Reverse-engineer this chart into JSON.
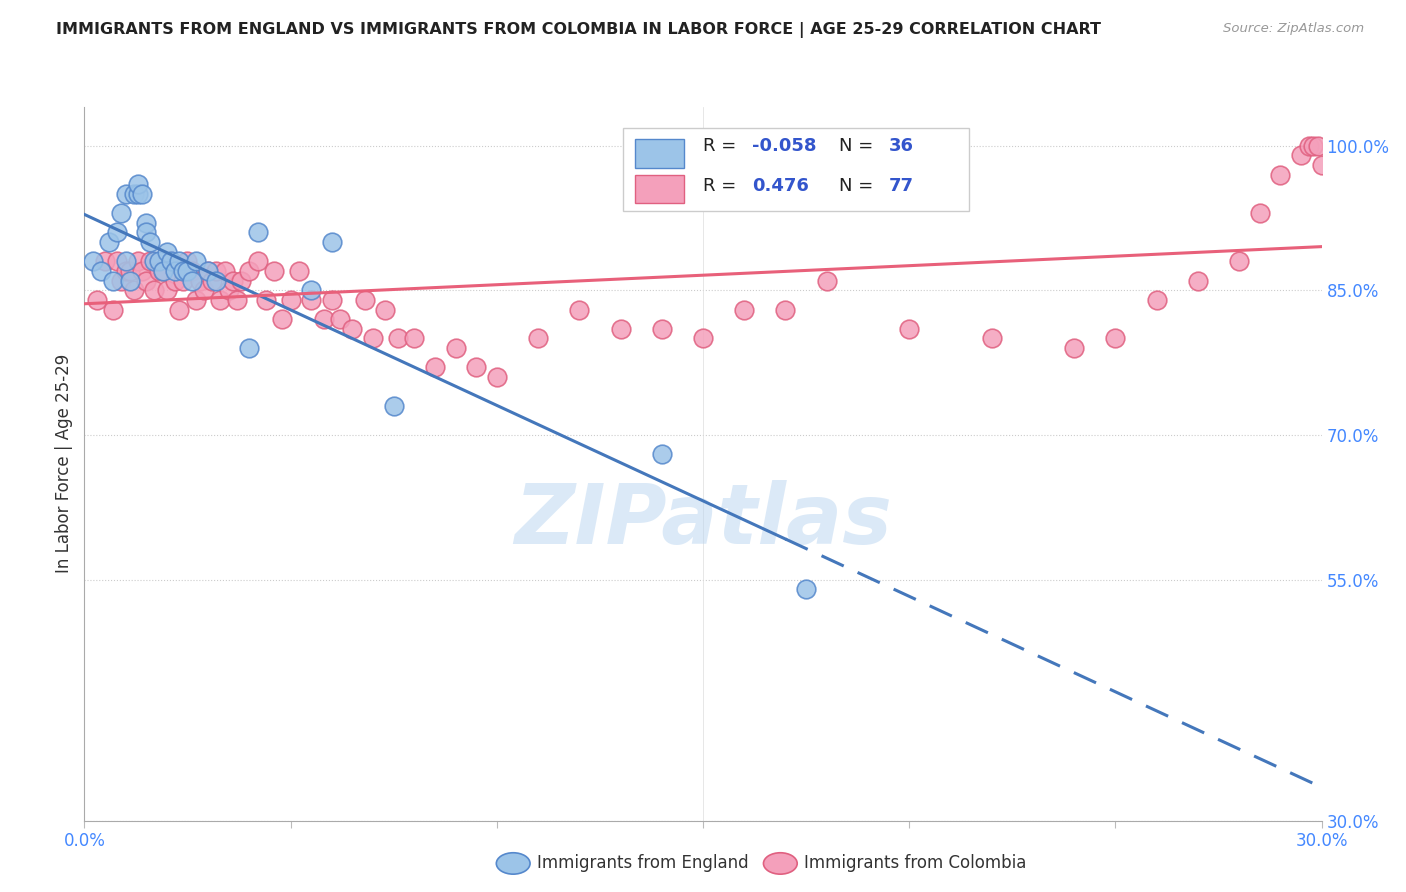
{
  "title": "IMMIGRANTS FROM ENGLAND VS IMMIGRANTS FROM COLOMBIA IN LABOR FORCE | AGE 25-29 CORRELATION CHART",
  "source": "Source: ZipAtlas.com",
  "ylabel": "In Labor Force | Age 25-29",
  "xlim": [
    0.0,
    0.3
  ],
  "ylim": [
    0.3,
    1.04
  ],
  "xticks": [
    0.0,
    0.05,
    0.1,
    0.15,
    0.2,
    0.25,
    0.3
  ],
  "xticklabels": [
    "0.0%",
    "",
    "",
    "",
    "",
    "",
    "30.0%"
  ],
  "yticks_right": [
    1.0,
    0.85,
    0.7,
    0.55,
    0.3
  ],
  "yticks_right_labels": [
    "100.0%",
    "85.0%",
    "70.0%",
    "55.0%",
    "30.0%"
  ],
  "england_color": "#9CC4E8",
  "colombia_color": "#F4A0BB",
  "england_edge_color": "#5588CC",
  "colombia_edge_color": "#E06080",
  "england_line_color": "#4477BB",
  "colombia_line_color": "#E8607A",
  "england_R": -0.058,
  "england_N": 36,
  "colombia_R": 0.476,
  "colombia_N": 77,
  "legend_label_england": "Immigrants from England",
  "legend_label_colombia": "Immigrants from Colombia",
  "england_x": [
    0.002,
    0.004,
    0.006,
    0.007,
    0.008,
    0.009,
    0.01,
    0.01,
    0.011,
    0.012,
    0.013,
    0.013,
    0.014,
    0.015,
    0.015,
    0.016,
    0.017,
    0.018,
    0.019,
    0.02,
    0.021,
    0.022,
    0.023,
    0.024,
    0.025,
    0.026,
    0.027,
    0.03,
    0.032,
    0.04,
    0.042,
    0.055,
    0.06,
    0.075,
    0.14,
    0.175
  ],
  "england_y": [
    0.88,
    0.87,
    0.9,
    0.86,
    0.91,
    0.93,
    0.88,
    0.95,
    0.86,
    0.95,
    0.95,
    0.96,
    0.95,
    0.92,
    0.91,
    0.9,
    0.88,
    0.88,
    0.87,
    0.89,
    0.88,
    0.87,
    0.88,
    0.87,
    0.87,
    0.86,
    0.88,
    0.87,
    0.86,
    0.79,
    0.91,
    0.85,
    0.9,
    0.73,
    0.68,
    0.54
  ],
  "colombia_x": [
    0.003,
    0.005,
    0.007,
    0.008,
    0.009,
    0.01,
    0.011,
    0.012,
    0.013,
    0.014,
    0.015,
    0.016,
    0.017,
    0.018,
    0.019,
    0.02,
    0.021,
    0.022,
    0.023,
    0.024,
    0.025,
    0.026,
    0.027,
    0.028,
    0.029,
    0.03,
    0.031,
    0.032,
    0.033,
    0.034,
    0.035,
    0.036,
    0.037,
    0.038,
    0.04,
    0.042,
    0.044,
    0.046,
    0.048,
    0.05,
    0.052,
    0.055,
    0.058,
    0.06,
    0.062,
    0.065,
    0.068,
    0.07,
    0.073,
    0.076,
    0.08,
    0.085,
    0.09,
    0.095,
    0.1,
    0.11,
    0.12,
    0.13,
    0.14,
    0.15,
    0.16,
    0.17,
    0.18,
    0.2,
    0.22,
    0.24,
    0.25,
    0.26,
    0.27,
    0.28,
    0.285,
    0.29,
    0.295,
    0.297,
    0.298,
    0.299,
    0.3
  ],
  "colombia_y": [
    0.84,
    0.88,
    0.83,
    0.88,
    0.86,
    0.87,
    0.87,
    0.85,
    0.88,
    0.87,
    0.86,
    0.88,
    0.85,
    0.87,
    0.87,
    0.85,
    0.88,
    0.86,
    0.83,
    0.86,
    0.88,
    0.87,
    0.84,
    0.86,
    0.85,
    0.87,
    0.86,
    0.87,
    0.84,
    0.87,
    0.85,
    0.86,
    0.84,
    0.86,
    0.87,
    0.88,
    0.84,
    0.87,
    0.82,
    0.84,
    0.87,
    0.84,
    0.82,
    0.84,
    0.82,
    0.81,
    0.84,
    0.8,
    0.83,
    0.8,
    0.8,
    0.77,
    0.79,
    0.77,
    0.76,
    0.8,
    0.83,
    0.81,
    0.81,
    0.8,
    0.83,
    0.83,
    0.86,
    0.81,
    0.8,
    0.79,
    0.8,
    0.84,
    0.86,
    0.88,
    0.93,
    0.97,
    0.99,
    1.0,
    1.0,
    1.0,
    0.98
  ],
  "background_color": "#ffffff",
  "grid_color": "#cccccc",
  "title_color": "#222222",
  "axis_color": "#4488ff",
  "watermark": "ZIPatlas",
  "watermark_color": "#b8d4f0"
}
